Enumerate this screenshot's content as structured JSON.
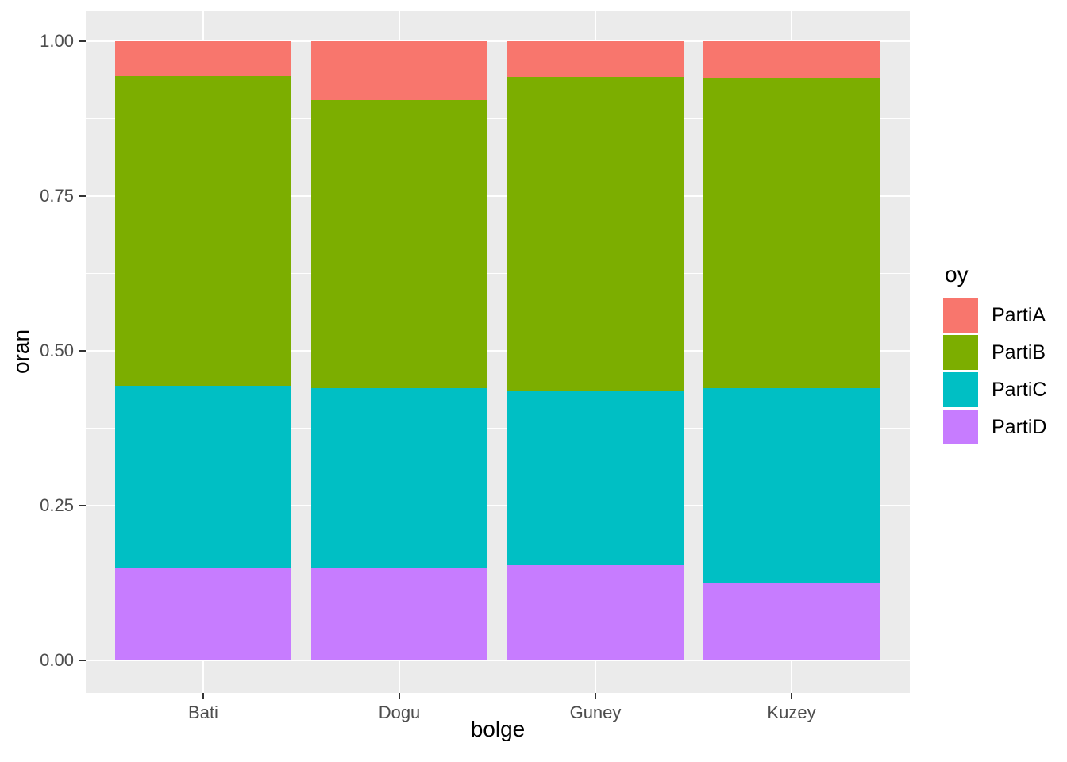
{
  "chart_data": {
    "type": "bar",
    "subtype": "stacked-filled",
    "title": "",
    "xlabel": "bolge",
    "ylabel": "oran",
    "categories": [
      "Bati",
      "Dogu",
      "Guney",
      "Kuzey"
    ],
    "series": [
      {
        "name": "PartiD",
        "color": "#C77CFF",
        "values": [
          0.15,
          0.15,
          0.154,
          0.125
        ]
      },
      {
        "name": "PartiC",
        "color": "#00BFC4",
        "values": [
          0.293,
          0.29,
          0.282,
          0.315
        ]
      },
      {
        "name": "PartiB",
        "color": "#7CAE00",
        "values": [
          0.5,
          0.465,
          0.506,
          0.501
        ]
      },
      {
        "name": "PartiA",
        "color": "#F8766D",
        "values": [
          0.057,
          0.095,
          0.058,
          0.059
        ]
      }
    ],
    "stack_order": "bottom-to-top: PartiD, PartiC, PartiB, PartiA",
    "ylim": [
      0,
      1
    ],
    "y_ticks": [
      {
        "value": 0.0,
        "label": "0.00"
      },
      {
        "value": 0.25,
        "label": "0.25"
      },
      {
        "value": 0.5,
        "label": "0.50"
      },
      {
        "value": 0.75,
        "label": "0.75"
      },
      {
        "value": 1.0,
        "label": "1.00"
      }
    ],
    "y_minor_ticks": [
      0.125,
      0.375,
      0.625,
      0.875
    ],
    "grid": "on",
    "legend": {
      "title": "oy",
      "position": "right",
      "items": [
        {
          "label": "PartiA",
          "color": "#F8766D"
        },
        {
          "label": "PartiB",
          "color": "#7CAE00"
        },
        {
          "label": "PartiC",
          "color": "#00BFC4"
        },
        {
          "label": "PartiD",
          "color": "#C77CFF"
        }
      ]
    }
  },
  "colors": {
    "panel_background": "#EBEBEB",
    "gridline": "#FFFFFF",
    "axis_text": "#4D4D4D",
    "tick_mark": "#333333",
    "title_text": "#000000",
    "page_background": "#FFFFFF"
  }
}
